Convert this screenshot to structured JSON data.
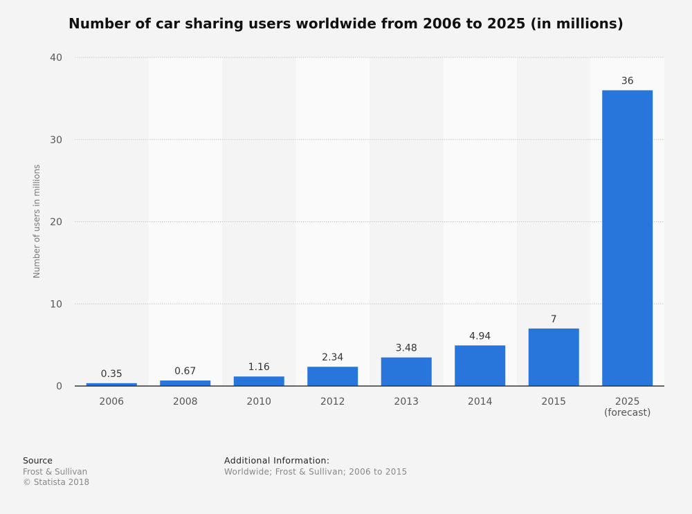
{
  "chart_data": {
    "type": "bar",
    "title": "Number of car sharing users worldwide from 2006 to 2025 (in millions)",
    "xlabel": "",
    "ylabel": "Number of users in millions",
    "categories": [
      "2006",
      "2008",
      "2010",
      "2012",
      "2013",
      "2014",
      "2015",
      "2025"
    ],
    "category_sublabels": [
      "",
      "",
      "",
      "",
      "",
      "",
      "",
      "(forecast)"
    ],
    "values": [
      0.35,
      0.67,
      1.16,
      2.34,
      3.48,
      4.94,
      7,
      36
    ],
    "value_labels": [
      "0.35",
      "0.67",
      "1.16",
      "2.34",
      "3.48",
      "4.94",
      "7",
      "36"
    ],
    "ylim": [
      0,
      40
    ],
    "yticks": [
      0,
      10,
      20,
      30,
      40
    ],
    "grid": true,
    "bar_color": "#2875dc"
  },
  "footer": {
    "source_heading": "Source",
    "source_lines": [
      "Frost & Sullivan",
      "© Statista 2018"
    ],
    "info_heading": "Additional Information:",
    "info_text": "Worldwide; Frost & Sullivan; 2006 to 2015"
  }
}
